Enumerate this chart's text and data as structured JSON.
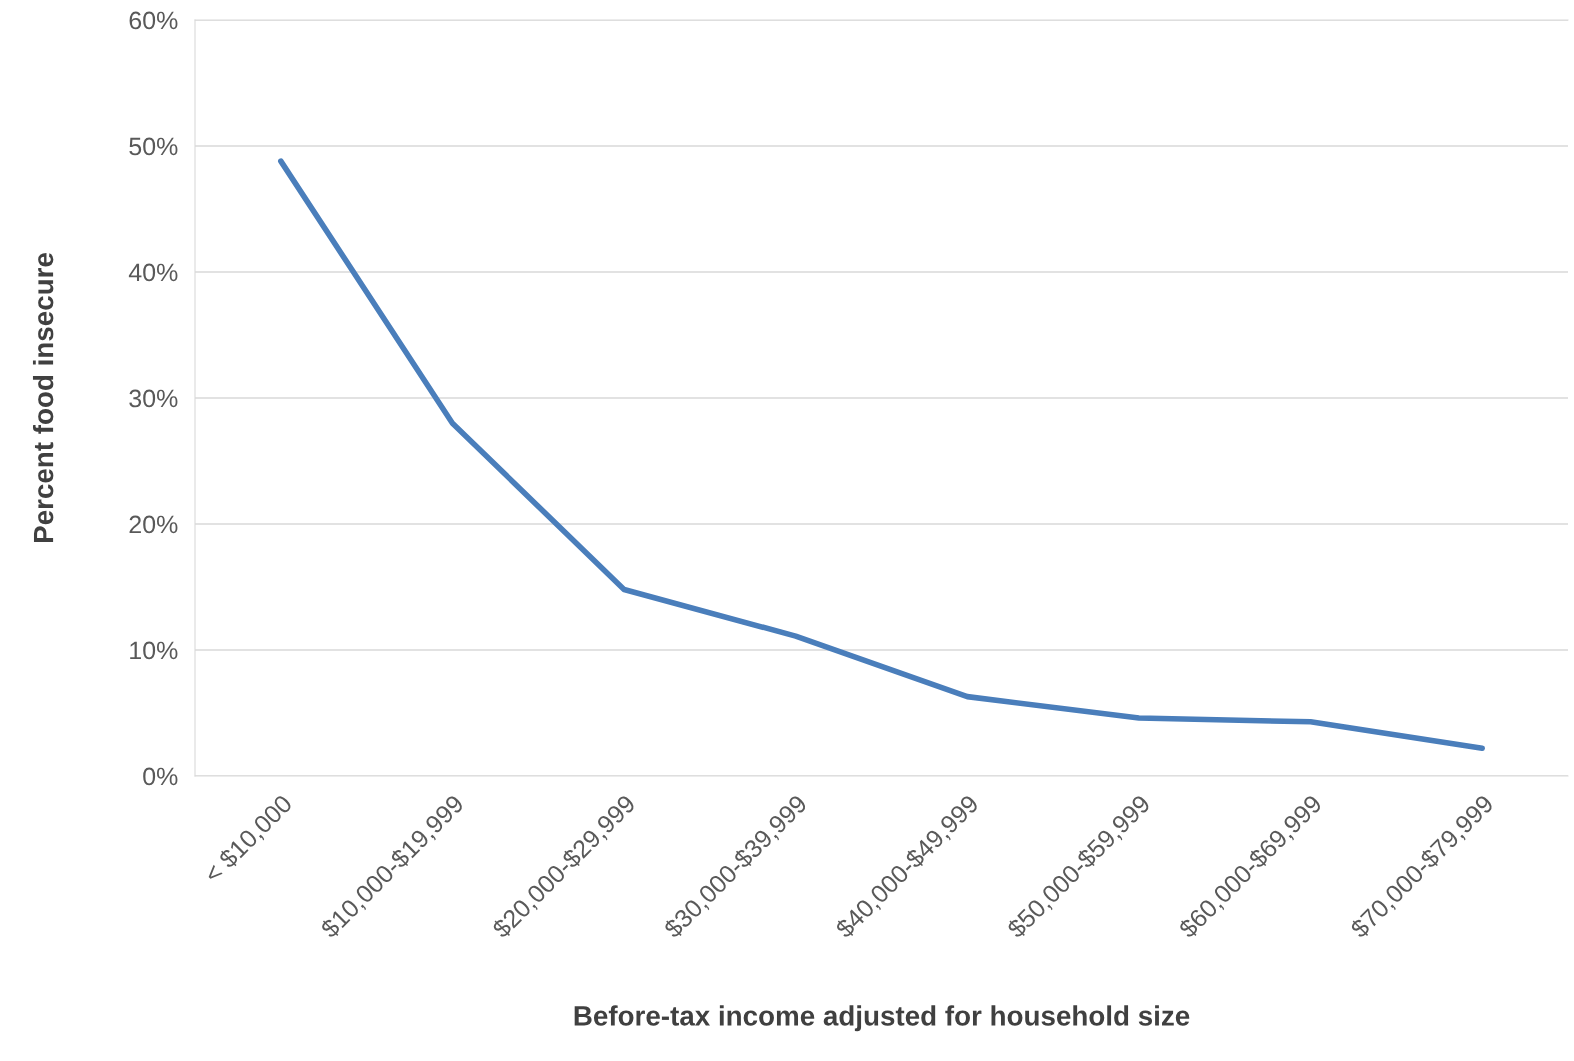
{
  "chart_data": {
    "type": "line",
    "xlabel": "Before-tax income adjusted for household size",
    "ylabel": "Percent food insecure",
    "categories": [
      "< $10,000",
      "$10,000-$19,999",
      "$20,000-$29,999",
      "$30,000-$39,999",
      "$40,000-$49,999",
      "$50,000-$59,999",
      "$60,000-$69,999",
      "$70,000-$79,999"
    ],
    "series": [
      {
        "color": "#4a7ebb",
        "values": [
          48.8,
          28,
          14.8,
          11.1,
          6.3,
          4.6,
          4.3,
          2.2
        ]
      }
    ],
    "ylim": [
      0,
      60
    ],
    "yticks": [
      {
        "value": 0,
        "label": "0%"
      },
      {
        "value": 10,
        "label": "10%"
      },
      {
        "value": 20,
        "label": "20%"
      },
      {
        "value": 30,
        "label": "30%"
      },
      {
        "value": 40,
        "label": "40%"
      },
      {
        "value": 50,
        "label": "50%"
      },
      {
        "value": 60,
        "label": "60%"
      }
    ],
    "grid": "y",
    "marker": "none",
    "line_style": "solid"
  }
}
